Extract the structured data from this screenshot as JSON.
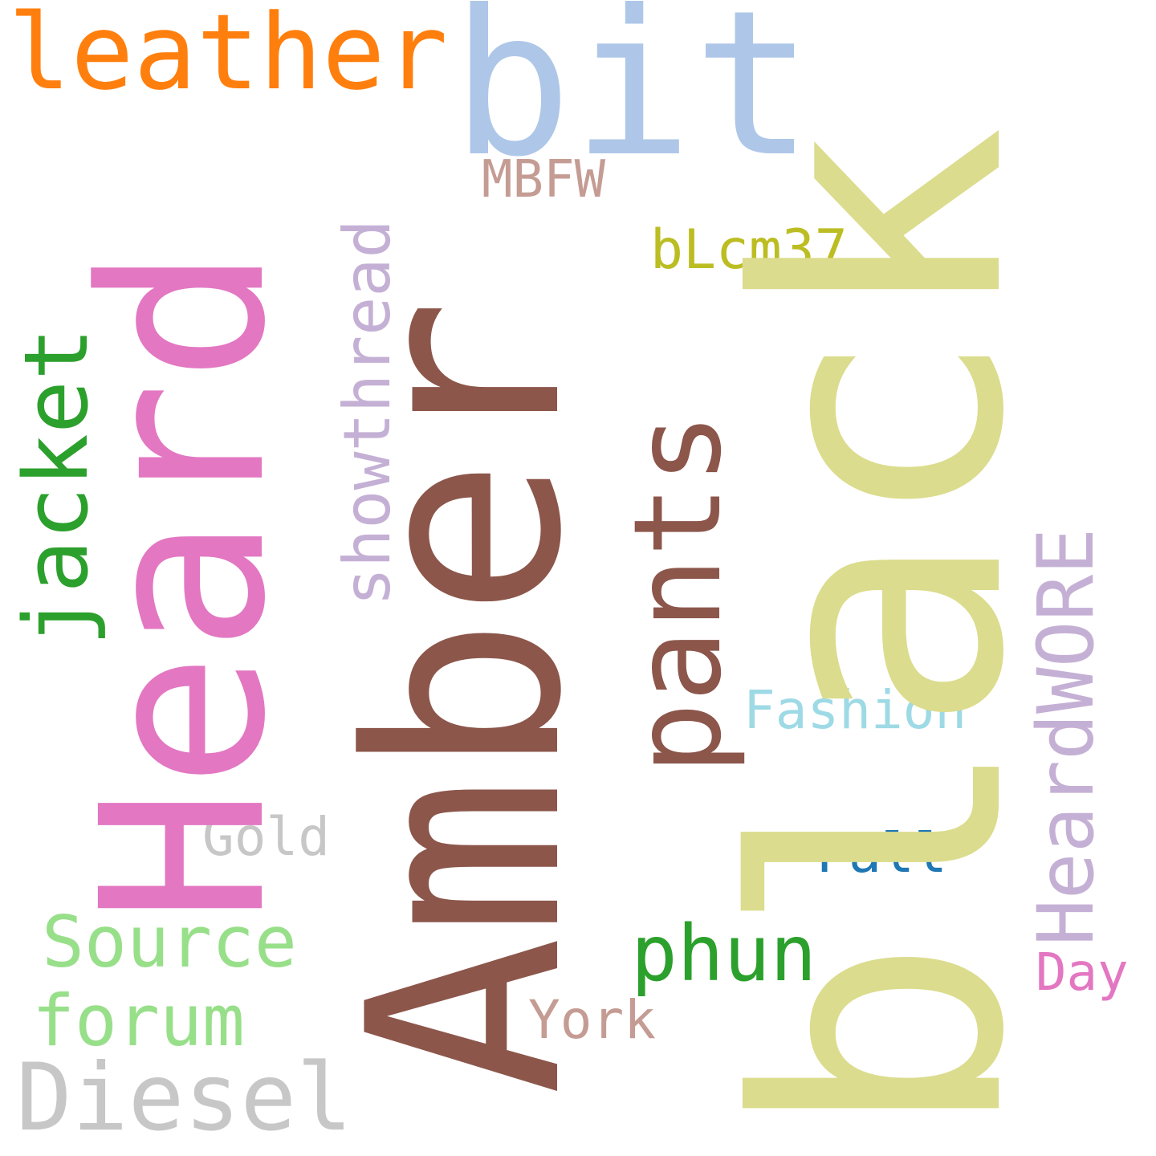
{
  "words": {
    "black": {
      "text": "black",
      "color": "#dbdc8d"
    },
    "Amber": {
      "text": "Amber",
      "color": "#8c564b"
    },
    "Heard": {
      "text": "Heard",
      "color": "#e377c2"
    },
    "bit": {
      "text": "bit",
      "color": "#aec7e8"
    },
    "leather": {
      "text": "leather",
      "color": "#ff7f0e"
    },
    "pants": {
      "text": "pants",
      "color": "#8c564b"
    },
    "jacket": {
      "text": "jacket",
      "color": "#2ca02c"
    },
    "showthread": {
      "text": "showthread",
      "color": "#c5b0d5"
    },
    "HeardWORE": {
      "text": "HeardWORE",
      "color": "#c5b0d5"
    },
    "MBFW": {
      "text": "MBFW",
      "color": "#c49c94"
    },
    "bLcm37": {
      "text": "bLcm37",
      "color": "#bcbd22"
    },
    "Fashion": {
      "text": "Fashion",
      "color": "#9edae5"
    },
    "Gold": {
      "text": "Gold",
      "color": "#c7c7c7"
    },
    "Fall": {
      "text": "Fall",
      "color": "#1f77b4"
    },
    "Source": {
      "text": "Source",
      "color": "#98df8a"
    },
    "phun": {
      "text": "phun",
      "color": "#2ca02c"
    },
    "Day": {
      "text": "Day",
      "color": "#e377c2"
    },
    "forum": {
      "text": "forum",
      "color": "#98df8a"
    },
    "York": {
      "text": "York",
      "color": "#c49c94"
    },
    "Diesel": {
      "text": "Diesel",
      "color": "#c7c7c7"
    }
  }
}
